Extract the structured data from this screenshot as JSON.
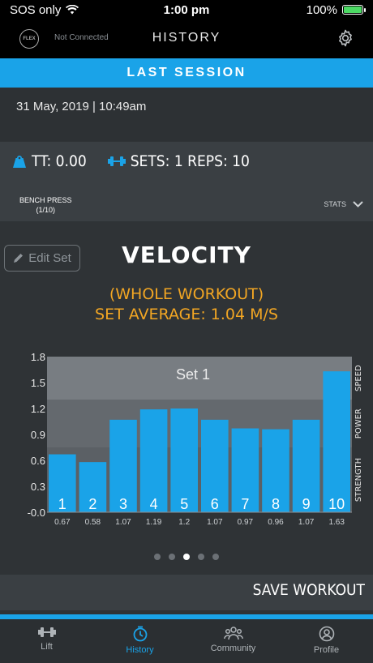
{
  "status_bar": {
    "carrier": "SOS only",
    "time": "1:00 pm",
    "battery": "100%"
  },
  "nav": {
    "device_logo": "FLEX",
    "connection": "Not Connected",
    "title": "HISTORY",
    "settings_icon": "gear-icon"
  },
  "session": {
    "banner": "LAST SESSION",
    "date": "31 May, 2019 | 10:49am"
  },
  "summary": {
    "tt": "TT: 0.00",
    "sets_reps": "SETS: 1  REPS: 10"
  },
  "exercise": {
    "name": "BENCH PRESS",
    "progress": "(1/10)",
    "stats_label": "STATS"
  },
  "edit_set": "Edit Set",
  "chart_data": {
    "type": "bar",
    "title": "VELOCITY",
    "subtitle": "(WHOLE WORKOUT)",
    "subtitle2": "SET AVERAGE: 1.04 M/S",
    "plot_label": "Set 1",
    "categories": [
      "1",
      "2",
      "3",
      "4",
      "5",
      "6",
      "7",
      "8",
      "9",
      "10"
    ],
    "values": [
      0.67,
      0.58,
      1.07,
      1.19,
      1.2,
      1.07,
      0.97,
      0.96,
      1.07,
      1.63
    ],
    "value_labels": [
      "0.67",
      "0.58",
      "1.07",
      "1.19",
      "1.2",
      "1.07",
      "0.97",
      "0.96",
      "1.07",
      "1.63"
    ],
    "yticks": [
      "-0.0",
      "0.3",
      "0.6",
      "0.9",
      "1.2",
      "1.5",
      "1.8"
    ],
    "ylim": [
      0,
      1.8
    ],
    "zones": [
      {
        "name": "STRENGTH",
        "from": 0,
        "to": 0.75
      },
      {
        "name": "POWER",
        "from": 0.75,
        "to": 1.3
      },
      {
        "name": "SPEED",
        "from": 1.3,
        "to": 1.8
      }
    ],
    "colors": {
      "bar": "#1aa3e8",
      "zone_strength": "#5b6065",
      "zone_power": "#64696e",
      "zone_speed": "#787d82"
    }
  },
  "pager": {
    "count": 5,
    "active": 2
  },
  "save": "SAVE WORKOUT",
  "tabs": [
    {
      "label": "Lift",
      "icon": "dumbbell-icon"
    },
    {
      "label": "History",
      "icon": "history-icon"
    },
    {
      "label": "Community",
      "icon": "community-icon"
    },
    {
      "label": "Profile",
      "icon": "profile-icon"
    }
  ]
}
